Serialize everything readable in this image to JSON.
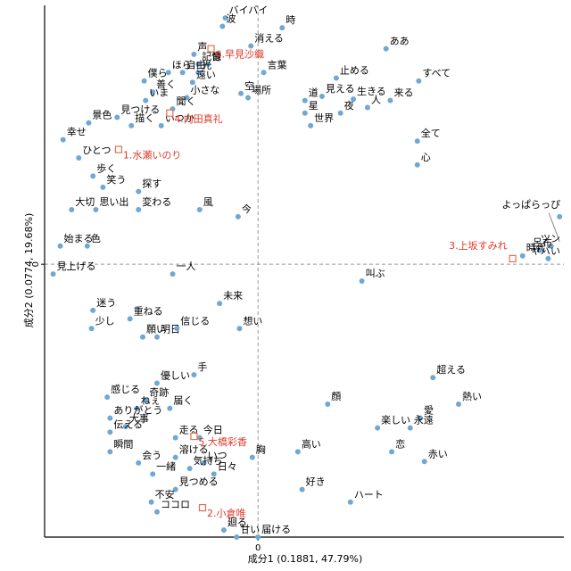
{
  "chart_data": {
    "type": "scatter",
    "title": "",
    "xlabel": "成分1 (0.1881, 47.79%)",
    "ylabel": "成分2 (0.0774, 19.68%)",
    "xlim": [
      -1.5,
      2.15
    ],
    "ylim": [
      -1.95,
      1.85
    ],
    "x_ticks": [
      "0"
    ],
    "y_ticks": [
      "0"
    ],
    "reference_lines": "dashed lines at x=0 and y=0",
    "grid": false,
    "colors": {
      "word_point": "#6fa8d4",
      "document_marker": "#e07050",
      "document_label": "#e03a2a",
      "axis": "#000000",
      "reference": "#999999"
    },
    "words": [
      {
        "label": "バイバイ",
        "x": -0.23,
        "y": 1.76
      },
      {
        "label": "波",
        "x": -0.25,
        "y": 1.7
      },
      {
        "label": "時",
        "x": 0.17,
        "y": 1.69
      },
      {
        "label": "消える",
        "x": -0.05,
        "y": 1.56
      },
      {
        "label": "ああ",
        "x": 0.9,
        "y": 1.54
      },
      {
        "label": "声",
        "x": -0.45,
        "y": 1.5
      },
      {
        "label": "記憶",
        "x": -0.42,
        "y": 1.43
      },
      {
        "label": "音",
        "x": -0.35,
        "y": 1.43
      },
      {
        "label": "ほら",
        "x": -0.63,
        "y": 1.37
      },
      {
        "label": "自由",
        "x": -0.53,
        "y": 1.37
      },
      {
        "label": "光",
        "x": -0.42,
        "y": 1.37
      },
      {
        "label": "言葉",
        "x": 0.04,
        "y": 1.37
      },
      {
        "label": "止める",
        "x": 0.55,
        "y": 1.33
      },
      {
        "label": "すべて",
        "x": 1.13,
        "y": 1.31
      },
      {
        "label": "僕ら",
        "x": -0.8,
        "y": 1.31
      },
      {
        "label": "遠い",
        "x": -0.46,
        "y": 1.3
      },
      {
        "label": "空",
        "x": -0.12,
        "y": 1.22
      },
      {
        "label": "善く",
        "x": -0.74,
        "y": 1.23
      },
      {
        "label": "小さな",
        "x": -0.5,
        "y": 1.19
      },
      {
        "label": "場所",
        "x": -0.07,
        "y": 1.19
      },
      {
        "label": "見える",
        "x": 0.45,
        "y": 1.2
      },
      {
        "label": "生きる",
        "x": 0.67,
        "y": 1.18
      },
      {
        "label": "道",
        "x": 0.33,
        "y": 1.17
      },
      {
        "label": "来る",
        "x": 0.93,
        "y": 1.17
      },
      {
        "label": "いま",
        "x": -0.79,
        "y": 1.17
      },
      {
        "label": "聞く",
        "x": -0.6,
        "y": 1.11
      },
      {
        "label": "人",
        "x": 0.77,
        "y": 1.12
      },
      {
        "label": "星",
        "x": 0.33,
        "y": 1.08
      },
      {
        "label": "夜",
        "x": 0.58,
        "y": 1.08
      },
      {
        "label": "見つける",
        "x": -0.99,
        "y": 1.05
      },
      {
        "label": "景色",
        "x": -1.19,
        "y": 1.01
      },
      {
        "label": "描く",
        "x": -0.89,
        "y": 0.99
      },
      {
        "label": "いつか",
        "x": -0.68,
        "y": 0.99
      },
      {
        "label": "世界",
        "x": 0.37,
        "y": 0.99
      },
      {
        "label": "全て",
        "x": 1.12,
        "y": 0.88
      },
      {
        "label": "幸せ",
        "x": -1.37,
        "y": 0.89
      },
      {
        "label": "ひとつ",
        "x": -1.26,
        "y": 0.76
      },
      {
        "label": "心",
        "x": 1.12,
        "y": 0.71
      },
      {
        "label": "歩く",
        "x": -1.16,
        "y": 0.63
      },
      {
        "label": "笑う",
        "x": -1.09,
        "y": 0.55
      },
      {
        "label": "探す",
        "x": -0.84,
        "y": 0.52
      },
      {
        "label": "風",
        "x": -0.41,
        "y": 0.39
      },
      {
        "label": "思い出",
        "x": -1.14,
        "y": 0.39
      },
      {
        "label": "変わる",
        "x": -0.84,
        "y": 0.39
      },
      {
        "label": "大切",
        "x": -1.31,
        "y": 0.39
      },
      {
        "label": "今",
        "x": -0.14,
        "y": 0.34
      },
      {
        "label": "よっぱらっぴ",
        "x": 2.12,
        "y": 0.34
      },
      {
        "label": "ツン",
        "x": 2.06,
        "y": 0.13
      },
      {
        "label": "呂布",
        "x": 1.98,
        "y": 0.1
      },
      {
        "label": "時代",
        "x": 1.86,
        "y": 0.06
      },
      {
        "label": "ヤバい",
        "x": 2.04,
        "y": 0.04
      },
      {
        "label": "始まる",
        "x": -1.39,
        "y": 0.13
      },
      {
        "label": "色",
        "x": -1.2,
        "y": 0.13
      },
      {
        "label": "見上げる",
        "x": -1.44,
        "y": -0.07
      },
      {
        "label": "一人",
        "x": -0.6,
        "y": -0.07
      },
      {
        "label": "叫ぶ",
        "x": 0.73,
        "y": -0.12
      },
      {
        "label": "未来",
        "x": -0.27,
        "y": -0.28
      },
      {
        "label": "迷う",
        "x": -1.16,
        "y": -0.33
      },
      {
        "label": "重ねる",
        "x": -0.9,
        "y": -0.39
      },
      {
        "label": "少し",
        "x": -1.17,
        "y": -0.46
      },
      {
        "label": "願い",
        "x": -0.81,
        "y": -0.52
      },
      {
        "label": "明日",
        "x": -0.71,
        "y": -0.52
      },
      {
        "label": "信じる",
        "x": -0.57,
        "y": -0.46
      },
      {
        "label": "想い",
        "x": -0.13,
        "y": -0.46
      },
      {
        "label": "超える",
        "x": 1.23,
        "y": -0.81
      },
      {
        "label": "手",
        "x": -0.45,
        "y": -0.79
      },
      {
        "label": "優しい",
        "x": -0.71,
        "y": -0.85
      },
      {
        "label": "熱い",
        "x": 1.41,
        "y": -1.0
      },
      {
        "label": "顔",
        "x": 0.49,
        "y": -1.0
      },
      {
        "label": "感じる",
        "x": -1.06,
        "y": -0.95
      },
      {
        "label": "奇跡",
        "x": -0.79,
        "y": -0.97
      },
      {
        "label": "ねぇ",
        "x": -0.85,
        "y": -1.03
      },
      {
        "label": "届く",
        "x": -0.62,
        "y": -1.03
      },
      {
        "label": "ありがとう",
        "x": -1.04,
        "y": -1.1
      },
      {
        "label": "大事",
        "x": -0.93,
        "y": -1.16
      },
      {
        "label": "愛",
        "x": 1.14,
        "y": -1.1
      },
      {
        "label": "楽しい",
        "x": 0.84,
        "y": -1.17
      },
      {
        "label": "永遠",
        "x": 1.07,
        "y": -1.17
      },
      {
        "label": "伝える",
        "x": -1.04,
        "y": -1.2
      },
      {
        "label": "走る",
        "x": -0.58,
        "y": -1.24
      },
      {
        "label": "今日",
        "x": -0.41,
        "y": -1.24
      },
      {
        "label": "高い",
        "x": 0.28,
        "y": -1.34
      },
      {
        "label": "恋",
        "x": 0.94,
        "y": -1.34
      },
      {
        "label": "赤い",
        "x": 1.17,
        "y": -1.41
      },
      {
        "label": "瞬間",
        "x": -1.04,
        "y": -1.34
      },
      {
        "label": "溶ける",
        "x": -0.58,
        "y": -1.38
      },
      {
        "label": "いつ",
        "x": -0.38,
        "y": -1.42
      },
      {
        "label": "胸",
        "x": -0.04,
        "y": -1.38
      },
      {
        "label": "会う",
        "x": -0.84,
        "y": -1.42
      },
      {
        "label": "気持ち",
        "x": -0.48,
        "y": -1.46
      },
      {
        "label": "一緒",
        "x": -0.74,
        "y": -1.5
      },
      {
        "label": "日々",
        "x": -0.31,
        "y": -1.5
      },
      {
        "label": "好き",
        "x": 0.31,
        "y": -1.61
      },
      {
        "label": "見つめる",
        "x": -0.58,
        "y": -1.61
      },
      {
        "label": "ハート",
        "x": 0.65,
        "y": -1.7
      },
      {
        "label": "不安",
        "x": -0.75,
        "y": -1.7
      },
      {
        "label": "ココロ",
        "x": -0.71,
        "y": -1.77
      },
      {
        "label": "廻る",
        "x": -0.24,
        "y": -1.9
      },
      {
        "label": "甘い",
        "x": -0.15,
        "y": -1.95
      },
      {
        "label": "届ける",
        "x": 0.0,
        "y": -1.95
      }
    ],
    "documents": [
      {
        "label": "6.早見沙織",
        "x": -0.33,
        "y": 1.54
      },
      {
        "label": "4.内田真礼",
        "x": -0.62,
        "y": 1.08
      },
      {
        "label": "1.水瀬いのり",
        "x": -0.98,
        "y": 0.82
      },
      {
        "label": "3.上坂すみれ",
        "x": 1.79,
        "y": 0.04
      },
      {
        "label": "5.大橋彩香",
        "x": -0.45,
        "y": -1.23
      },
      {
        "label": "2.小倉唯",
        "x": -0.39,
        "y": -1.74
      }
    ]
  }
}
